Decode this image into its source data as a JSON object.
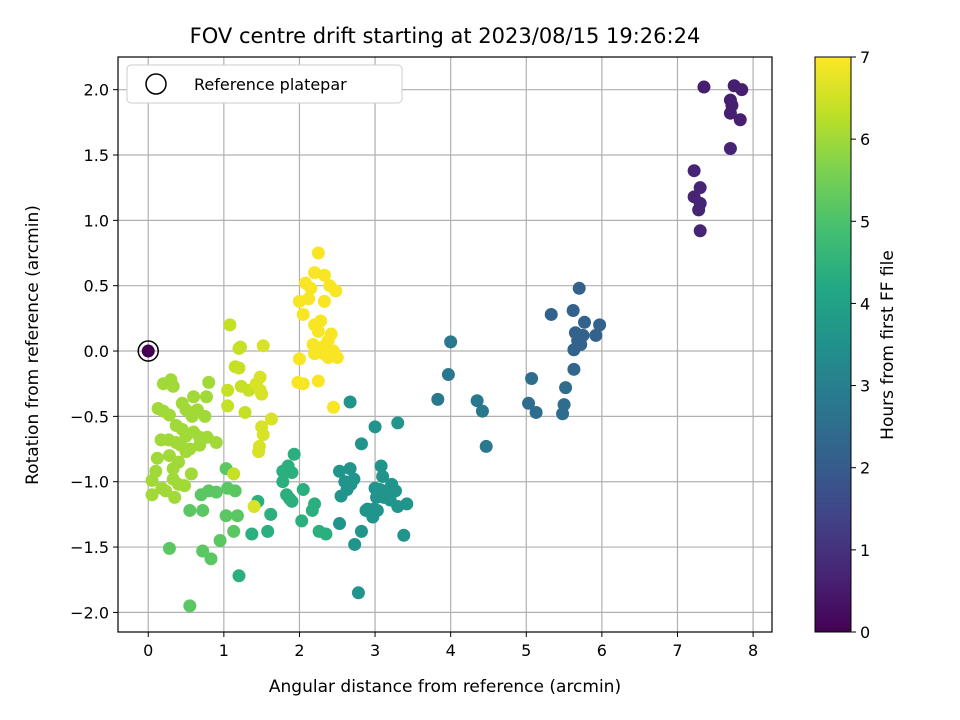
{
  "chart_data": {
    "type": "scatter",
    "title": "FOV centre drift starting at 2023/08/15 19:26:24",
    "xlabel": "Angular distance from reference (arcmin)",
    "ylabel": "Rotation from reference (arcmin)",
    "xlim": [
      -0.4,
      8.25
    ],
    "ylim": [
      -2.15,
      2.25
    ],
    "xticks": [
      0,
      1,
      2,
      3,
      4,
      5,
      6,
      7,
      8
    ],
    "yticks": [
      -2.0,
      -1.5,
      -1.0,
      -0.5,
      0.0,
      0.5,
      1.0,
      1.5,
      2.0
    ],
    "grid": true,
    "legend": {
      "position": "top-left",
      "entries": [
        "Reference platepar"
      ]
    },
    "reference_point": {
      "x": 0,
      "y": 0
    },
    "colorbar": {
      "label": "Hours from first FF file",
      "range": [
        0,
        7
      ],
      "ticks": [
        0,
        1,
        2,
        3,
        4,
        5,
        6,
        7
      ],
      "colormap": "viridis"
    },
    "points": [
      [
        7.75,
        2.03,
        0.6
      ],
      [
        7.35,
        2.02,
        0.6
      ],
      [
        7.85,
        2.0,
        0.6
      ],
      [
        7.7,
        1.92,
        0.6
      ],
      [
        7.72,
        1.88,
        0.6
      ],
      [
        7.7,
        1.82,
        0.6
      ],
      [
        7.83,
        1.77,
        0.6
      ],
      [
        7.7,
        1.55,
        0.7
      ],
      [
        7.22,
        1.38,
        0.7
      ],
      [
        7.3,
        1.25,
        0.7
      ],
      [
        7.22,
        1.18,
        0.7
      ],
      [
        7.3,
        1.13,
        0.7
      ],
      [
        7.28,
        1.08,
        0.7
      ],
      [
        7.3,
        0.92,
        0.7
      ],
      [
        5.7,
        0.48,
        2.2
      ],
      [
        5.62,
        0.31,
        2.2
      ],
      [
        5.33,
        0.28,
        2.2
      ],
      [
        5.77,
        0.22,
        2.2
      ],
      [
        5.97,
        0.2,
        2.2
      ],
      [
        5.65,
        0.14,
        2.2
      ],
      [
        5.75,
        0.12,
        2.2
      ],
      [
        5.92,
        0.12,
        2.2
      ],
      [
        5.68,
        0.08,
        2.2
      ],
      [
        5.72,
        0.05,
        2.2
      ],
      [
        5.63,
        0.01,
        2.2
      ],
      [
        5.63,
        -0.14,
        2.3
      ],
      [
        5.07,
        -0.21,
        2.5
      ],
      [
        5.52,
        -0.28,
        2.5
      ],
      [
        5.03,
        -0.4,
        2.5
      ],
      [
        5.5,
        -0.41,
        2.5
      ],
      [
        5.13,
        -0.47,
        2.5
      ],
      [
        5.48,
        -0.48,
        2.5
      ],
      [
        4.0,
        0.07,
        2.8
      ],
      [
        3.97,
        -0.18,
        2.8
      ],
      [
        3.83,
        -0.37,
        2.8
      ],
      [
        4.35,
        -0.38,
        2.8
      ],
      [
        4.42,
        -0.46,
        2.8
      ],
      [
        4.47,
        -0.73,
        2.8
      ],
      [
        2.67,
        -0.39,
        3.6
      ],
      [
        3.0,
        -0.58,
        3.6
      ],
      [
        3.3,
        -0.55,
        3.6
      ],
      [
        3.08,
        -0.88,
        3.6
      ],
      [
        2.67,
        -0.9,
        3.6
      ],
      [
        2.53,
        -0.92,
        3.6
      ],
      [
        3.1,
        -0.96,
        3.6
      ],
      [
        2.72,
        -0.98,
        3.6
      ],
      [
        2.6,
        -1.0,
        3.6
      ],
      [
        2.68,
        -1.02,
        3.6
      ],
      [
        3.22,
        -1.02,
        3.6
      ],
      [
        3.0,
        -1.05,
        3.6
      ],
      [
        2.63,
        -1.06,
        3.6
      ],
      [
        3.07,
        -1.06,
        3.6
      ],
      [
        3.15,
        -1.07,
        3.6
      ],
      [
        3.27,
        -1.07,
        3.6
      ],
      [
        3.1,
        -1.1,
        3.6
      ],
      [
        2.55,
        -1.11,
        3.6
      ],
      [
        3.02,
        -1.12,
        3.6
      ],
      [
        3.12,
        -1.12,
        3.6
      ],
      [
        3.2,
        -1.14,
        3.6
      ],
      [
        3.42,
        -1.17,
        3.6
      ],
      [
        3.3,
        -1.19,
        3.6
      ],
      [
        2.9,
        -1.21,
        3.6
      ],
      [
        2.98,
        -1.21,
        3.6
      ],
      [
        2.88,
        -1.22,
        3.6
      ],
      [
        3.03,
        -1.22,
        3.6
      ],
      [
        2.97,
        -1.27,
        3.6
      ],
      [
        2.53,
        -1.32,
        3.6
      ],
      [
        2.82,
        -1.38,
        3.6
      ],
      [
        3.38,
        -1.41,
        3.6
      ],
      [
        2.73,
        -1.48,
        3.6
      ],
      [
        2.82,
        -0.71,
        3.6
      ],
      [
        2.78,
        -1.85,
        3.6
      ],
      [
        1.93,
        -0.79,
        4.4
      ],
      [
        1.85,
        -0.88,
        4.4
      ],
      [
        1.78,
        -0.92,
        4.4
      ],
      [
        1.9,
        -0.93,
        4.4
      ],
      [
        1.78,
        -1.0,
        4.4
      ],
      [
        2.05,
        -1.06,
        4.4
      ],
      [
        1.83,
        -1.1,
        4.4
      ],
      [
        1.87,
        -1.13,
        4.4
      ],
      [
        1.9,
        -1.15,
        4.4
      ],
      [
        1.45,
        -1.15,
        4.4
      ],
      [
        2.2,
        -1.17,
        4.4
      ],
      [
        2.17,
        -1.22,
        4.4
      ],
      [
        1.62,
        -1.25,
        4.4
      ],
      [
        2.03,
        -1.3,
        4.4
      ],
      [
        1.58,
        -1.38,
        4.4
      ],
      [
        2.26,
        -1.38,
        4.4
      ],
      [
        2.35,
        -1.4,
        4.4
      ],
      [
        1.37,
        -1.4,
        4.4
      ],
      [
        1.2,
        -1.72,
        4.4
      ],
      [
        1.03,
        -0.9,
        5.2
      ],
      [
        1.05,
        -1.05,
        5.2
      ],
      [
        1.15,
        -1.07,
        5.2
      ],
      [
        1.18,
        -1.26,
        5.2
      ],
      [
        1.03,
        -1.26,
        5.2
      ],
      [
        1.13,
        -1.38,
        5.2
      ],
      [
        0.95,
        -1.45,
        5.2
      ],
      [
        0.83,
        -1.59,
        5.2
      ],
      [
        0.72,
        -1.53,
        5.2
      ],
      [
        0.72,
        -1.22,
        5.2
      ],
      [
        0.7,
        -1.1,
        5.2
      ],
      [
        0.9,
        -1.08,
        5.2
      ],
      [
        0.8,
        -1.07,
        5.2
      ],
      [
        0.55,
        -1.22,
        5.2
      ],
      [
        0.28,
        -1.51,
        5.2
      ],
      [
        0.55,
        -1.95,
        5.2
      ],
      [
        0.2,
        -0.25,
        6.0
      ],
      [
        0.3,
        -0.22,
        6.0
      ],
      [
        0.33,
        -0.27,
        6.0
      ],
      [
        0.8,
        -0.24,
        6.0
      ],
      [
        0.6,
        -0.35,
        6.0
      ],
      [
        0.77,
        -0.35,
        6.0
      ],
      [
        0.45,
        -0.4,
        6.0
      ],
      [
        0.13,
        -0.44,
        6.0
      ],
      [
        0.2,
        -0.46,
        6.0
      ],
      [
        0.5,
        -0.45,
        6.0
      ],
      [
        0.65,
        -0.45,
        6.0
      ],
      [
        0.58,
        -0.5,
        6.0
      ],
      [
        0.28,
        -0.49,
        6.0
      ],
      [
        0.75,
        -0.5,
        6.0
      ],
      [
        0.37,
        -0.57,
        6.0
      ],
      [
        0.45,
        -0.6,
        6.0
      ],
      [
        0.6,
        -0.62,
        6.0
      ],
      [
        0.5,
        -0.65,
        6.0
      ],
      [
        0.68,
        -0.66,
        6.0
      ],
      [
        0.78,
        -0.66,
        6.0
      ],
      [
        0.17,
        -0.68,
        6.0
      ],
      [
        0.27,
        -0.68,
        6.0
      ],
      [
        0.37,
        -0.7,
        6.0
      ],
      [
        0.43,
        -0.72,
        6.0
      ],
      [
        0.9,
        -0.7,
        6.0
      ],
      [
        0.55,
        -0.75,
        6.0
      ],
      [
        0.68,
        -0.72,
        6.0
      ],
      [
        0.28,
        -0.8,
        6.0
      ],
      [
        0.12,
        -0.82,
        6.0
      ],
      [
        0.4,
        -0.85,
        6.0
      ],
      [
        0.5,
        -0.77,
        6.0
      ],
      [
        0.33,
        -0.9,
        6.0
      ],
      [
        0.1,
        -0.92,
        6.0
      ],
      [
        0.57,
        -0.94,
        6.0
      ],
      [
        0.33,
        -0.98,
        6.0
      ],
      [
        0.05,
        -0.99,
        6.0
      ],
      [
        0.4,
        -1.02,
        6.0
      ],
      [
        0.48,
        -1.03,
        6.0
      ],
      [
        0.18,
        -1.05,
        6.0
      ],
      [
        0.23,
        -1.07,
        6.0
      ],
      [
        0.05,
        -1.1,
        6.0
      ],
      [
        0.35,
        -1.12,
        6.0
      ],
      [
        1.08,
        0.2,
        6.4
      ],
      [
        1.22,
        0.03,
        6.4
      ],
      [
        1.2,
        0.02,
        6.4
      ],
      [
        1.15,
        -0.12,
        6.4
      ],
      [
        1.2,
        -0.13,
        6.4
      ],
      [
        1.05,
        -0.3,
        6.4
      ],
      [
        1.23,
        -0.27,
        6.4
      ],
      [
        1.33,
        -0.3,
        6.4
      ],
      [
        1.05,
        -0.42,
        6.4
      ],
      [
        1.28,
        -0.47,
        6.4
      ],
      [
        1.13,
        -0.94,
        6.4
      ],
      [
        1.52,
        0.04,
        6.6
      ],
      [
        1.48,
        -0.2,
        6.6
      ],
      [
        1.43,
        -0.25,
        6.6
      ],
      [
        1.5,
        -0.33,
        6.6
      ],
      [
        1.63,
        -0.52,
        6.6
      ],
      [
        1.5,
        -0.58,
        6.6
      ],
      [
        1.52,
        -0.64,
        6.6
      ],
      [
        1.47,
        -0.73,
        6.6
      ],
      [
        1.46,
        -0.77,
        6.6
      ],
      [
        1.4,
        -1.19,
        6.6
      ],
      [
        1.48,
        -0.3,
        6.6
      ],
      [
        2.25,
        0.75,
        6.95
      ],
      [
        2.2,
        0.6,
        6.95
      ],
      [
        2.33,
        0.58,
        6.95
      ],
      [
        2.08,
        0.52,
        6.95
      ],
      [
        2.4,
        0.5,
        6.95
      ],
      [
        2.48,
        0.46,
        6.95
      ],
      [
        2.15,
        0.48,
        6.95
      ],
      [
        2.0,
        0.38,
        6.95
      ],
      [
        2.12,
        0.4,
        6.95
      ],
      [
        2.33,
        0.38,
        6.95
      ],
      [
        2.05,
        0.28,
        6.95
      ],
      [
        2.28,
        0.23,
        6.95
      ],
      [
        2.2,
        0.2,
        6.95
      ],
      [
        2.25,
        0.15,
        6.95
      ],
      [
        2.42,
        0.13,
        6.95
      ],
      [
        2.38,
        0.08,
        6.95
      ],
      [
        2.18,
        0.05,
        6.95
      ],
      [
        2.3,
        0.03,
        6.95
      ],
      [
        2.45,
        0.0,
        6.95
      ],
      [
        2.2,
        -0.02,
        6.95
      ],
      [
        2.32,
        -0.02,
        6.95
      ],
      [
        2.38,
        -0.05,
        6.95
      ],
      [
        2.5,
        -0.05,
        6.95
      ],
      [
        2.0,
        -0.06,
        6.95
      ],
      [
        2.25,
        -0.23,
        6.95
      ],
      [
        1.98,
        -0.24,
        6.95
      ],
      [
        2.05,
        -0.25,
        6.95
      ],
      [
        2.45,
        -0.43,
        6.95
      ]
    ]
  }
}
